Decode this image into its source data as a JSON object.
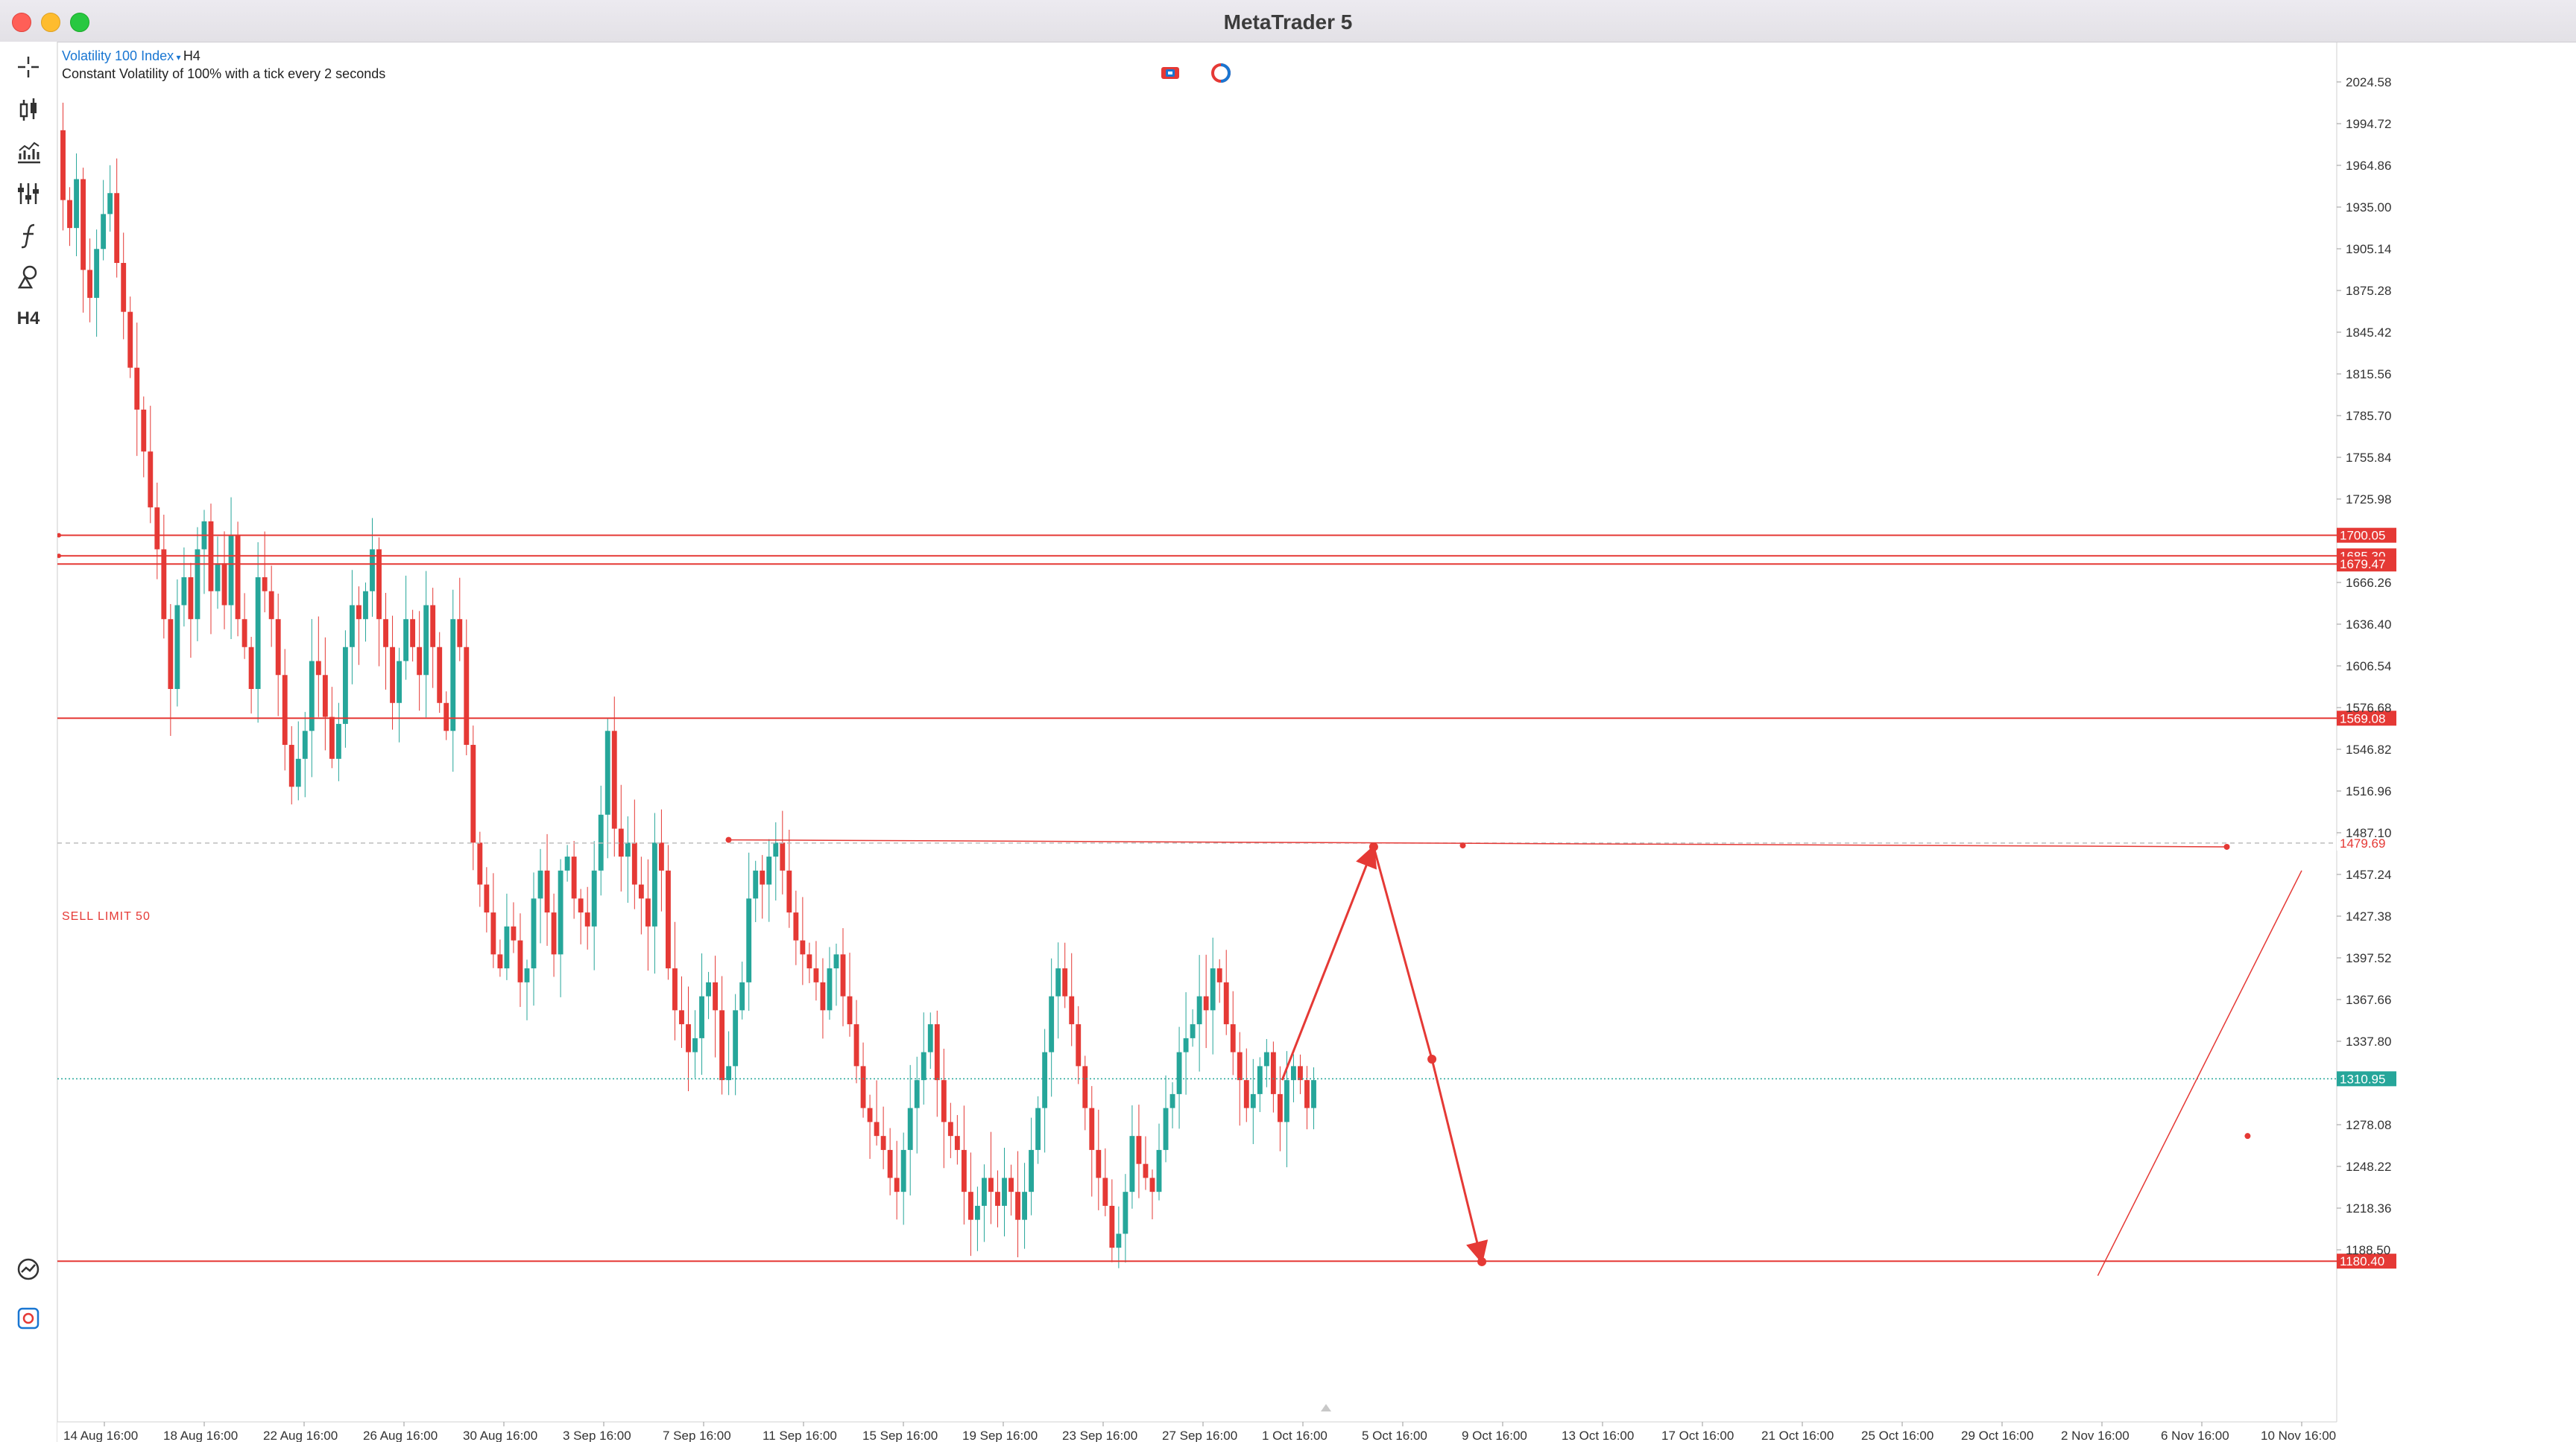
{
  "window": {
    "title": "MetaTrader 5"
  },
  "toolbar": {
    "items": [
      {
        "name": "crosshair-icon"
      },
      {
        "name": "chart-type-icon"
      },
      {
        "name": "indicators-icon"
      },
      {
        "name": "settings-sliders-icon"
      },
      {
        "name": "function-icon"
      },
      {
        "name": "drawing-shapes-icon"
      },
      {
        "name": "timeframe-button",
        "label": "H4"
      }
    ],
    "bottom_items": [
      {
        "name": "trade-icon"
      },
      {
        "name": "account-icon"
      }
    ]
  },
  "symbol": {
    "name": "Volatility 100 Index",
    "timeframe": "H4",
    "description": "Constant Volatility of 100% with a tick every 2 seconds"
  },
  "order": {
    "label": "SELL LIMIT 50"
  },
  "colors": {
    "bull": "#26a69a",
    "bear": "#e53935",
    "line": "#e53935",
    "current_price": "#26a69a",
    "grid_text": "#333333"
  },
  "chart_data": {
    "type": "candlestick",
    "y_ticks": [
      "2024.58",
      "1994.72",
      "1964.86",
      "1935.00",
      "1905.14",
      "1875.28",
      "1845.42",
      "1815.56",
      "1785.70",
      "1755.84",
      "1725.98",
      "1666.26",
      "1636.40",
      "1606.54",
      "1576.68",
      "1546.82",
      "1516.96",
      "1487.10",
      "1457.24",
      "1427.38",
      "1397.52",
      "1367.66",
      "1337.80",
      "1278.08",
      "1248.22",
      "1218.36",
      "1188.50"
    ],
    "x_ticks": [
      "14 Aug 16:00",
      "18 Aug 16:00",
      "22 Aug 16:00",
      "26 Aug 16:00",
      "30 Aug 16:00",
      "3 Sep 16:00",
      "7 Sep 16:00",
      "11 Sep 16:00",
      "15 Sep 16:00",
      "19 Sep 16:00",
      "23 Sep 16:00",
      "27 Sep 16:00",
      "1 Oct 16:00",
      "5 Oct 16:00",
      "9 Oct 16:00",
      "13 Oct 16:00",
      "17 Oct 16:00",
      "21 Oct 16:00",
      "25 Oct 16:00",
      "29 Oct 16:00",
      "2 Nov 16:00",
      "6 Nov 16:00",
      "10 Nov 16:00"
    ],
    "horizontal_levels": [
      {
        "label": "1700.05",
        "value": 1700.05
      },
      {
        "label": "1685.30",
        "value": 1685.3
      },
      {
        "label": "1679.47",
        "value": 1679.47
      },
      {
        "label": "1569.08",
        "value": 1569.08
      },
      {
        "label": "1479.69",
        "value": 1479.69,
        "dashed": true
      },
      {
        "label": "1180.40",
        "value": 1180.4
      }
    ],
    "current_price": {
      "label": "1310.95",
      "value": 1310.95
    },
    "projection_path": [
      {
        "date": "30 Sep 20:00",
        "price": 1310
      },
      {
        "date": "4 Oct 12:00",
        "price": 1477
      },
      {
        "date": "6 Oct 20:00",
        "price": 1325
      },
      {
        "date": "8 Oct 20:00",
        "price": 1180
      }
    ],
    "sell_limit_line": [
      {
        "date": "8 Sep 16:00",
        "price": 1482
      },
      {
        "date": "7 Nov 16:00",
        "price": 1477
      }
    ],
    "trend_line": [
      {
        "date": "2 Nov 12:00",
        "price": 1170
      },
      {
        "date": "10 Nov 16:00",
        "price": 1460
      }
    ],
    "candles_close": [
      1940,
      1920,
      1955,
      1890,
      1870,
      1905,
      1930,
      1945,
      1895,
      1860,
      1820,
      1790,
      1760,
      1720,
      1690,
      1640,
      1590,
      1650,
      1670,
      1640,
      1690,
      1710,
      1660,
      1680,
      1650,
      1700,
      1640,
      1620,
      1590,
      1670,
      1660,
      1640,
      1600,
      1550,
      1520,
      1540,
      1560,
      1610,
      1600,
      1570,
      1540,
      1565,
      1620,
      1650,
      1640,
      1660,
      1690,
      1640,
      1620,
      1580,
      1610,
      1640,
      1620,
      1600,
      1650,
      1620,
      1580,
      1560,
      1640,
      1620,
      1550,
      1480,
      1450,
      1430,
      1400,
      1390,
      1420,
      1410,
      1380,
      1390,
      1440,
      1460,
      1430,
      1400,
      1460,
      1470,
      1440,
      1430,
      1420,
      1460,
      1500,
      1560,
      1490,
      1470,
      1480,
      1450,
      1440,
      1420,
      1480,
      1460,
      1390,
      1360,
      1350,
      1330,
      1340,
      1370,
      1380,
      1360,
      1310,
      1320,
      1360,
      1380,
      1440,
      1460,
      1450,
      1470,
      1480,
      1460,
      1430,
      1410,
      1400,
      1390,
      1380,
      1360,
      1390,
      1400,
      1370,
      1350,
      1320,
      1290,
      1280,
      1270,
      1260,
      1240,
      1230,
      1260,
      1290,
      1310,
      1330,
      1350,
      1310,
      1280,
      1270,
      1260,
      1230,
      1210,
      1220,
      1240,
      1230,
      1220,
      1240,
      1230,
      1210,
      1230,
      1260,
      1290,
      1330,
      1370,
      1390,
      1370,
      1350,
      1320,
      1290,
      1260,
      1240,
      1220,
      1190,
      1200,
      1230,
      1270,
      1250,
      1240,
      1230,
      1260,
      1290,
      1300,
      1330,
      1340,
      1350,
      1370,
      1360,
      1390,
      1380,
      1350,
      1330,
      1310,
      1290,
      1300,
      1320,
      1330,
      1300,
      1280,
      1310,
      1320,
      1310,
      1290,
      1310
    ],
    "ylim": [
      1180.4,
      2035
    ]
  }
}
